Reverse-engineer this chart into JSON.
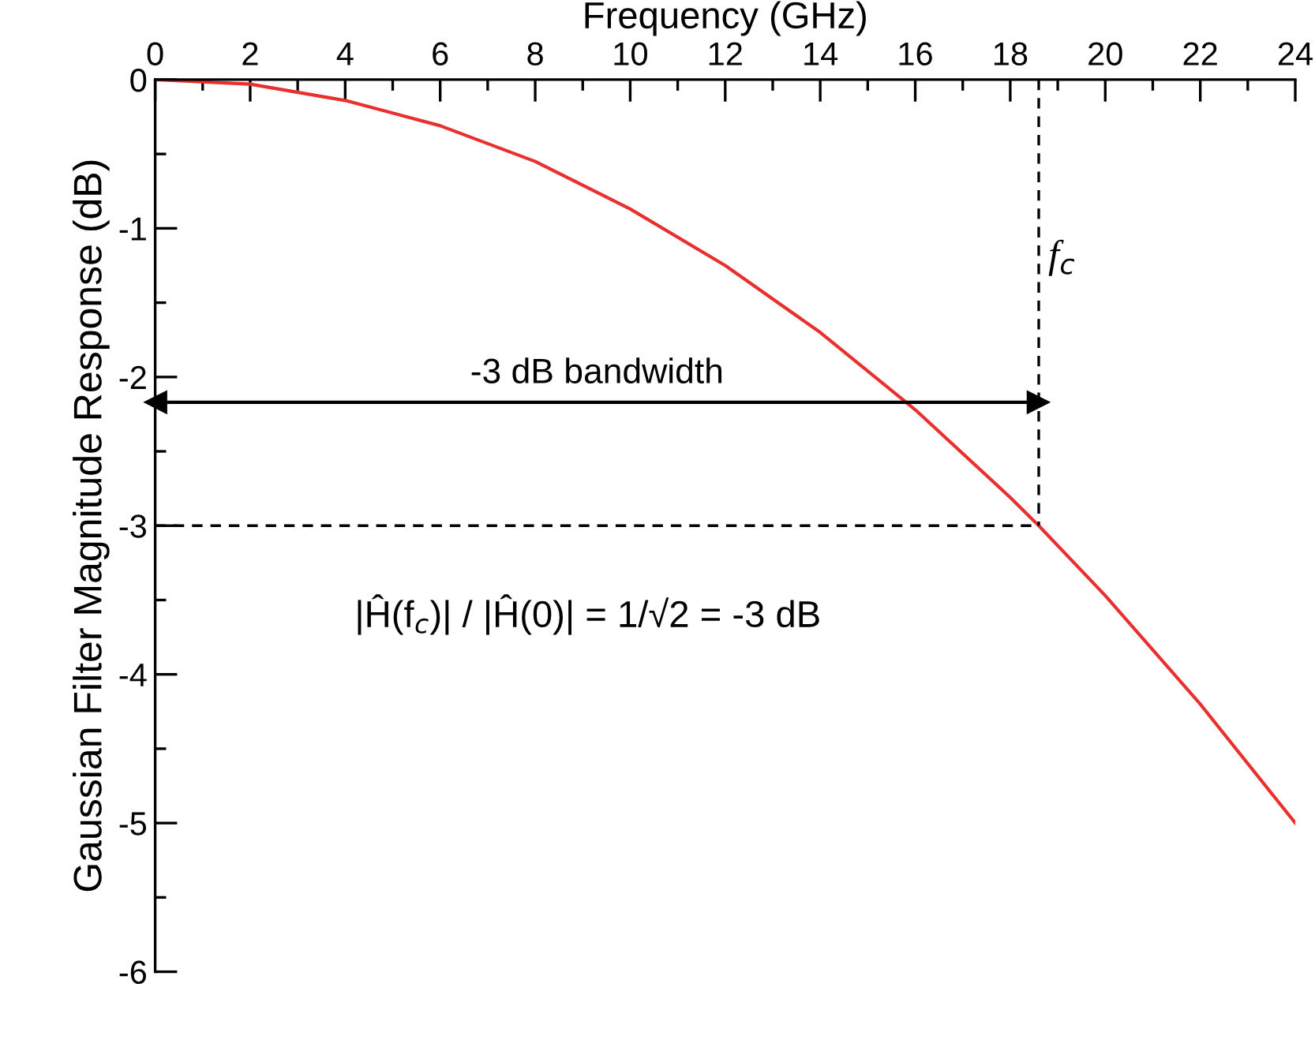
{
  "chart_data": {
    "type": "line",
    "xlabel": "Frequency (GHz)",
    "ylabel": "Gaussian Filter Magnitude Response (dB)",
    "xlim": [
      0,
      24
    ],
    "ylim": [
      -6,
      0
    ],
    "xticks": [
      0,
      {
        "value": 1,
        "label": null
      },
      2,
      {
        "value": 3,
        "label": null
      },
      4,
      {
        "value": 5,
        "label": null
      },
      6,
      {
        "value": 7,
        "label": null
      },
      8,
      {
        "value": 9,
        "label": null
      },
      10,
      {
        "value": 11,
        "label": null
      },
      12,
      {
        "value": 13,
        "label": null
      },
      14,
      {
        "value": 15,
        "label": null
      },
      16,
      {
        "value": 17,
        "label": null
      },
      18,
      {
        "value": 19,
        "label": null
      },
      20,
      {
        "value": 21,
        "label": null
      },
      22,
      {
        "value": 23,
        "label": null
      },
      24
    ],
    "yticks": [
      0,
      {
        "value": -0.5,
        "label": null
      },
      -1,
      {
        "value": -1.5,
        "label": null
      },
      -2,
      {
        "value": -2.5,
        "label": null
      },
      -3,
      {
        "value": -3.5,
        "label": null
      },
      -4,
      {
        "value": -4.5,
        "label": null
      },
      -5,
      {
        "value": -5.5,
        "label": null
      },
      -6
    ],
    "grid": false,
    "legend": false,
    "series": [
      {
        "color": "#e8302f",
        "line_style": "solid",
        "x": [
          0,
          2,
          4,
          6,
          8,
          10,
          12,
          14,
          16,
          18,
          18.6,
          20,
          22,
          24
        ],
        "values": [
          0,
          -0.03,
          -0.14,
          -0.31,
          -0.55,
          -0.87,
          -1.25,
          -1.7,
          -2.22,
          -2.81,
          -3,
          -3.47,
          -4.2,
          -5
        ]
      },
      {
        "color": "#000000",
        "line_style": "dashed",
        "x": [
          18.6,
          18.6
        ],
        "values": [
          0,
          -3
        ]
      },
      {
        "color": "#000000",
        "line_style": "dashed",
        "x": [
          0,
          18.6
        ],
        "values": [
          -3,
          -3
        ]
      },
      {
        "color": "#000000",
        "line_style": "solid",
        "marker": "triangle",
        "x": [
          0,
          18.6
        ],
        "values": [
          -2.17,
          -2.17
        ]
      }
    ],
    "annotations": [
      "-3 dB bandwidth",
      {
        "text": "f$_{c}$",
        "x": 18.6,
        "y": -1.2
      },
      "|Ĥ(f$_{c}$)| / |Ĥ(0)| = 1/√2 = -3 dB"
    ]
  }
}
